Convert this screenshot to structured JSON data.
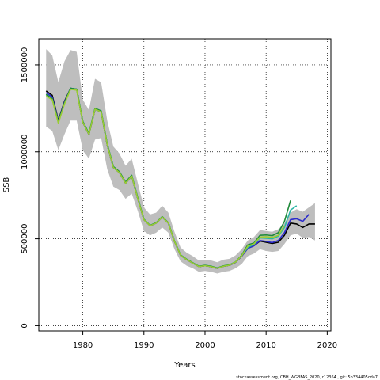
{
  "chart_data": {
    "type": "line",
    "xlabel": "Years",
    "ylabel": "SSB",
    "xlim": [
      1972.8,
      2020.6
    ],
    "ylim": [
      -30000,
      1650000
    ],
    "x_ticks": [
      1980,
      1990,
      2000,
      2010,
      2020
    ],
    "y_ticks": [
      0,
      500000,
      1000000,
      1500000
    ],
    "grid": true,
    "grid_style": "dotted",
    "footer": "stockassessment.org, CBH_WGBFAS_2020, r12364 , git: 5b334405cda7",
    "band": {
      "color": "#bebebe",
      "x": [
        1974,
        1975,
        1976,
        1977,
        1978,
        1979,
        1980,
        1981,
        1982,
        1983,
        1984,
        1985,
        1986,
        1987,
        1988,
        1989,
        1990,
        1991,
        1992,
        1993,
        1994,
        1995,
        1996,
        1997,
        1998,
        1999,
        2000,
        2001,
        2002,
        2003,
        2004,
        2005,
        2006,
        2007,
        2008,
        2009,
        2010,
        2011,
        2012,
        2013,
        2014,
        2015,
        2016,
        2017,
        2018
      ],
      "upper": [
        1590000,
        1555000,
        1400000,
        1520000,
        1585000,
        1575000,
        1300000,
        1240000,
        1420000,
        1400000,
        1180000,
        1030000,
        990000,
        920000,
        960000,
        820000,
        680000,
        640000,
        650000,
        690000,
        650000,
        540000,
        450000,
        420000,
        400000,
        375000,
        380000,
        375000,
        365000,
        380000,
        385000,
        405000,
        440000,
        490000,
        510000,
        550000,
        545000,
        540000,
        555000,
        590000,
        650000,
        670000,
        655000,
        680000,
        705000
      ],
      "lower": [
        1145000,
        1120000,
        1010000,
        1100000,
        1180000,
        1180000,
        1010000,
        960000,
        1070000,
        1080000,
        900000,
        800000,
        780000,
        730000,
        760000,
        660000,
        545000,
        520000,
        535000,
        565000,
        535000,
        440000,
        370000,
        345000,
        330000,
        310000,
        315000,
        310000,
        300000,
        310000,
        315000,
        330000,
        355000,
        400000,
        415000,
        440000,
        430000,
        425000,
        430000,
        470000,
        520000,
        530000,
        505000,
        510000,
        490000
      ]
    },
    "series": [
      {
        "color": "#000000",
        "x": [
          1974,
          1975,
          1976,
          1977,
          1978,
          1979,
          1980,
          1981,
          1982,
          1983,
          1984,
          1985,
          1986,
          1987,
          1988,
          1989,
          1990,
          1991,
          1992,
          1993,
          1994,
          1995,
          1996,
          1997,
          1998,
          1999,
          2000,
          2001,
          2002,
          2003,
          2004,
          2005,
          2006,
          2007,
          2008,
          2009,
          2010,
          2011,
          2012,
          2013,
          2014,
          2015,
          2016,
          2017,
          2018
        ],
        "values": [
          1350000,
          1325000,
          1180000,
          1290000,
          1365000,
          1360000,
          1170000,
          1100000,
          1245000,
          1230000,
          1040000,
          910000,
          880000,
          820000,
          860000,
          730000,
          610000,
          575000,
          590000,
          625000,
          590000,
          485000,
          405000,
          380000,
          360000,
          340000,
          345000,
          340000,
          330000,
          342000,
          348000,
          365000,
          400000,
          445000,
          460000,
          487000,
          480000,
          473000,
          480000,
          520000,
          590000,
          585000,
          565000,
          585000,
          585000
        ]
      },
      {
        "color": "#2b2bcc",
        "x": [
          1974,
          1975,
          1976,
          1977,
          1978,
          1979,
          1980,
          1981,
          1982,
          1983,
          1984,
          1985,
          1986,
          1987,
          1988,
          1989,
          1990,
          1991,
          1992,
          1993,
          1994,
          1995,
          1996,
          1997,
          1998,
          1999,
          2000,
          2001,
          2002,
          2003,
          2004,
          2005,
          2006,
          2007,
          2008,
          2009,
          2010,
          2011,
          2012,
          2013,
          2014,
          2015,
          2016,
          2017
        ],
        "values": [
          1340000,
          1315000,
          1175000,
          1285000,
          1365000,
          1360000,
          1170000,
          1100000,
          1245000,
          1230000,
          1040000,
          910000,
          880000,
          820000,
          860000,
          730000,
          610000,
          575000,
          590000,
          625000,
          590000,
          485000,
          405000,
          380000,
          360000,
          340000,
          345000,
          340000,
          330000,
          342000,
          348000,
          365000,
          400000,
          445000,
          460000,
          490000,
          485000,
          478000,
          490000,
          535000,
          610000,
          615000,
          600000,
          640000
        ]
      },
      {
        "color": "#2ab5a5",
        "x": [
          1974,
          1975,
          1976,
          1977,
          1978,
          1979,
          1980,
          1981,
          1982,
          1983,
          1984,
          1985,
          1986,
          1987,
          1988,
          1989,
          1990,
          1991,
          1992,
          1993,
          1994,
          1995,
          1996,
          1997,
          1998,
          1999,
          2000,
          2001,
          2002,
          2003,
          2004,
          2005,
          2006,
          2007,
          2008,
          2009,
          2010,
          2011,
          2012,
          2013,
          2014,
          2015
        ],
        "values": [
          1330000,
          1305000,
          1170000,
          1280000,
          1365000,
          1360000,
          1175000,
          1105000,
          1250000,
          1235000,
          1045000,
          915000,
          885000,
          825000,
          865000,
          735000,
          612000,
          577000,
          592000,
          627000,
          592000,
          487000,
          407000,
          382000,
          362000,
          342000,
          347000,
          342000,
          332000,
          344000,
          350000,
          367000,
          403000,
          450000,
          468000,
          505000,
          503000,
          500000,
          515000,
          565000,
          665000,
          690000
        ]
      },
      {
        "color": "#1f8a3a",
        "x": [
          1974,
          1975,
          1976,
          1977,
          1978,
          1979,
          1980,
          1981,
          1982,
          1983,
          1984,
          1985,
          1986,
          1987,
          1988,
          1989,
          1990,
          1991,
          1992,
          1993,
          1994,
          1995,
          1996,
          1997,
          1998,
          1999,
          2000,
          2001,
          2002,
          2003,
          2004,
          2005,
          2006,
          2007,
          2008,
          2009,
          2010,
          2011,
          2012,
          2013,
          2014
        ],
        "values": [
          1330000,
          1305000,
          1170000,
          1280000,
          1365000,
          1360000,
          1175000,
          1105000,
          1250000,
          1235000,
          1045000,
          915000,
          885000,
          825000,
          865000,
          735000,
          612000,
          577000,
          592000,
          627000,
          592000,
          487000,
          407000,
          382000,
          362000,
          342000,
          347000,
          342000,
          332000,
          344000,
          350000,
          367000,
          405000,
          465000,
          475000,
          520000,
          522000,
          518000,
          535000,
          600000,
          720000
        ]
      },
      {
        "color": "#9acd32",
        "x": [
          1974,
          1975,
          1976,
          1977,
          1978,
          1979,
          1980,
          1981,
          1982,
          1983,
          1984,
          1985,
          1986,
          1987,
          1988,
          1989,
          1990,
          1991,
          1992,
          1993,
          1994,
          1995,
          1996,
          1997,
          1998,
          1999,
          2000,
          2001,
          2002,
          2003,
          2004,
          2005,
          2006,
          2007,
          2008,
          2009,
          2010,
          2011,
          2012,
          2013
        ],
        "values": [
          1320000,
          1300000,
          1165000,
          1275000,
          1360000,
          1355000,
          1170000,
          1100000,
          1245000,
          1230000,
          1040000,
          910000,
          880000,
          820000,
          860000,
          730000,
          610000,
          575000,
          590000,
          625000,
          590000,
          485000,
          405000,
          380000,
          360000,
          340000,
          345000,
          340000,
          330000,
          342000,
          348000,
          366000,
          402000,
          458000,
          470000,
          510000,
          512000,
          508000,
          520000,
          575000
        ]
      }
    ]
  }
}
